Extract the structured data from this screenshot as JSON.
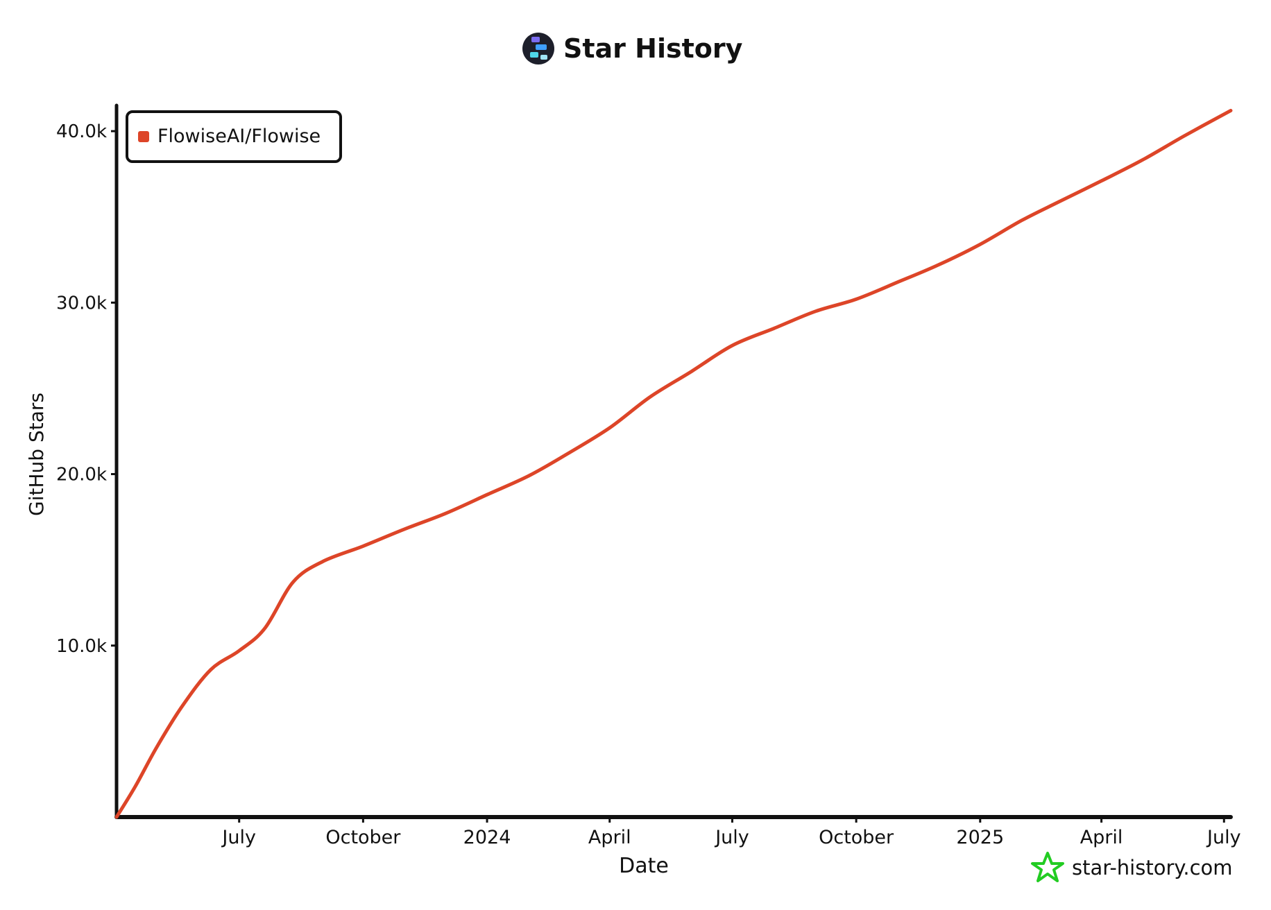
{
  "header": {
    "title": "Star History",
    "logo_icon": "star-history-logo-icon"
  },
  "footer": {
    "watermark": "star-history.com",
    "watermark_icon": "green-star-icon"
  },
  "colors": {
    "series": "#dd4528",
    "axis": "#111111",
    "watermark_star": "#22cc22",
    "logo_bg": "#1d1f2b"
  },
  "chart_data": {
    "type": "line",
    "title": "Star History",
    "xlabel": "Date",
    "ylabel": "GitHub Stars",
    "grid": false,
    "legend_position": "top-left",
    "xlim": [
      "2023-04-01",
      "2025-07-06"
    ],
    "ylim": [
      0,
      41500
    ],
    "x_ticks": [
      {
        "label": "July",
        "date": "2023-07-01"
      },
      {
        "label": "October",
        "date": "2023-10-01"
      },
      {
        "label": "2024",
        "date": "2024-01-01"
      },
      {
        "label": "April",
        "date": "2024-04-01"
      },
      {
        "label": "July",
        "date": "2024-07-01"
      },
      {
        "label": "October",
        "date": "2024-10-01"
      },
      {
        "label": "2025",
        "date": "2025-01-01"
      },
      {
        "label": "April",
        "date": "2025-04-01"
      },
      {
        "label": "July",
        "date": "2025-07-01"
      }
    ],
    "y_ticks": [
      {
        "label": "10.0k",
        "value": 10000
      },
      {
        "label": "20.0k",
        "value": 20000
      },
      {
        "label": "30.0k",
        "value": 30000
      },
      {
        "label": "40.0k",
        "value": 40000
      }
    ],
    "series": [
      {
        "name": "FlowiseAI/Flowise",
        "points": [
          [
            "2023-04-01",
            0
          ],
          [
            "2023-04-15",
            1800
          ],
          [
            "2023-05-01",
            4100
          ],
          [
            "2023-05-20",
            6500
          ],
          [
            "2023-06-10",
            8600
          ],
          [
            "2023-07-01",
            9700
          ],
          [
            "2023-07-20",
            11000
          ],
          [
            "2023-08-10",
            13700
          ],
          [
            "2023-09-01",
            14900
          ],
          [
            "2023-10-01",
            15800
          ],
          [
            "2023-11-01",
            16800
          ],
          [
            "2023-12-01",
            17700
          ],
          [
            "2024-01-01",
            18800
          ],
          [
            "2024-02-01",
            19900
          ],
          [
            "2024-03-01",
            21200
          ],
          [
            "2024-04-01",
            22700
          ],
          [
            "2024-05-01",
            24500
          ],
          [
            "2024-06-01",
            26000
          ],
          [
            "2024-07-01",
            27500
          ],
          [
            "2024-08-01",
            28500
          ],
          [
            "2024-09-01",
            29500
          ],
          [
            "2024-10-01",
            30200
          ],
          [
            "2024-11-01",
            31200
          ],
          [
            "2024-12-01",
            32200
          ],
          [
            "2025-01-01",
            33400
          ],
          [
            "2025-02-01",
            34800
          ],
          [
            "2025-03-01",
            35900
          ],
          [
            "2025-04-01",
            37100
          ],
          [
            "2025-05-01",
            38300
          ],
          [
            "2025-06-01",
            39700
          ],
          [
            "2025-07-06",
            41200
          ]
        ]
      }
    ]
  }
}
